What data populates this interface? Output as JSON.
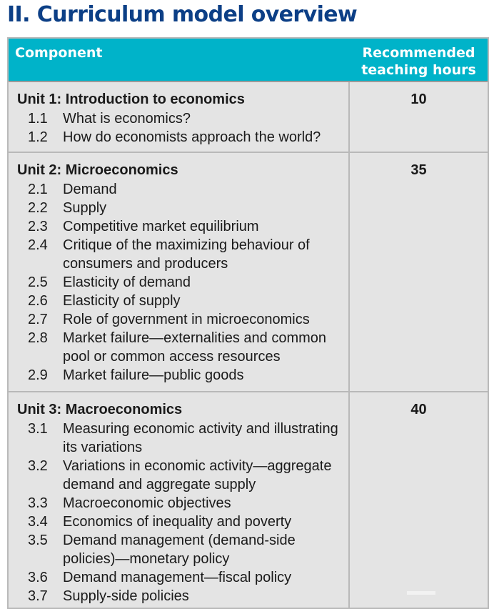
{
  "title": "II. Curriculum model overview",
  "table": {
    "header": {
      "component": "Component",
      "hours_line1": "Recommended",
      "hours_line2": "teaching hours"
    },
    "units": [
      {
        "title": "Unit 1: Introduction to economics",
        "hours": "10",
        "items": [
          {
            "number": "1.1",
            "label": "What is economics?"
          },
          {
            "number": "1.2",
            "label": "How do economists approach the world?"
          }
        ]
      },
      {
        "title": "Unit  2: Microeconomics",
        "hours": "35",
        "items": [
          {
            "number": "2.1",
            "label": "Demand"
          },
          {
            "number": "2.2",
            "label": "Supply"
          },
          {
            "number": "2.3",
            "label": "Competitive market equilibrium"
          },
          {
            "number": "2.4",
            "label": "Critique of the maximizing behaviour of consumers and producers"
          },
          {
            "number": "2.5",
            "label": "Elasticity of demand"
          },
          {
            "number": "2.6",
            "label": "Elasticity of supply"
          },
          {
            "number": "2.7",
            "label": "Role of government in microeconomics"
          },
          {
            "number": "2.8",
            "label": "Market failure—externalities and common pool or common access resources"
          },
          {
            "number": "2.9",
            "label": "Market failure—public goods"
          }
        ]
      },
      {
        "title": "Unit 3: Macroeconomics",
        "hours": "40",
        "items": [
          {
            "number": "3.1",
            "label": "Measuring economic activity and illustrating its variations"
          },
          {
            "number": "3.2",
            "label": "Variations in economic activity—aggregate demand and aggregate supply"
          },
          {
            "number": "3.3",
            "label": "Macroeconomic objectives"
          },
          {
            "number": "3.4",
            "label": "Economics of inequality and poverty"
          },
          {
            "number": "3.5",
            "label": "Demand management (demand-side policies)—monetary policy"
          },
          {
            "number": "3.6",
            "label": "Demand management—fiscal policy"
          },
          {
            "number": "3.7",
            "label": "Supply-side policies"
          }
        ]
      }
    ]
  }
}
